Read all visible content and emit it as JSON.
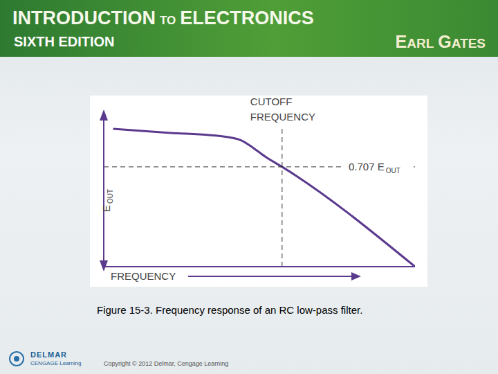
{
  "header": {
    "title": "INTRODUCTION TO ELECTRONICS",
    "edition": "SIXTH EDITION",
    "author": "EARL GATES"
  },
  "chart_data": {
    "type": "line",
    "x": [
      0.3,
      2,
      4,
      4.4,
      4.8,
      5.2,
      5.73,
      10
    ],
    "values": [
      9.05,
      8.8,
      8.5,
      8.3,
      7.8,
      7.2,
      6.55,
      0
    ],
    "color": "#5b3a8e",
    "xlim": [
      0,
      10
    ],
    "ylim": [
      0,
      10
    ],
    "tick_labels": false,
    "grid": false,
    "x_label": "FREQUENCY",
    "y_label": "E",
    "y_label_sub": "OUT",
    "annotations": [
      {
        "text": "CUTOFF FREQUENCY",
        "x": 5.73,
        "line_style": "dashed"
      },
      {
        "text": "0.707 E",
        "subscript": "OUT",
        "y": 6.55,
        "line_style": "dashed"
      }
    ]
  },
  "caption": "Figure 15-3. Frequency response of an RC low-pass filter.",
  "footer": {
    "publisher": "DELMAR",
    "publisher_sub": "CENGAGE Learning",
    "copyright": "Copyright © 2012 Delmar, Cengage Learning"
  }
}
